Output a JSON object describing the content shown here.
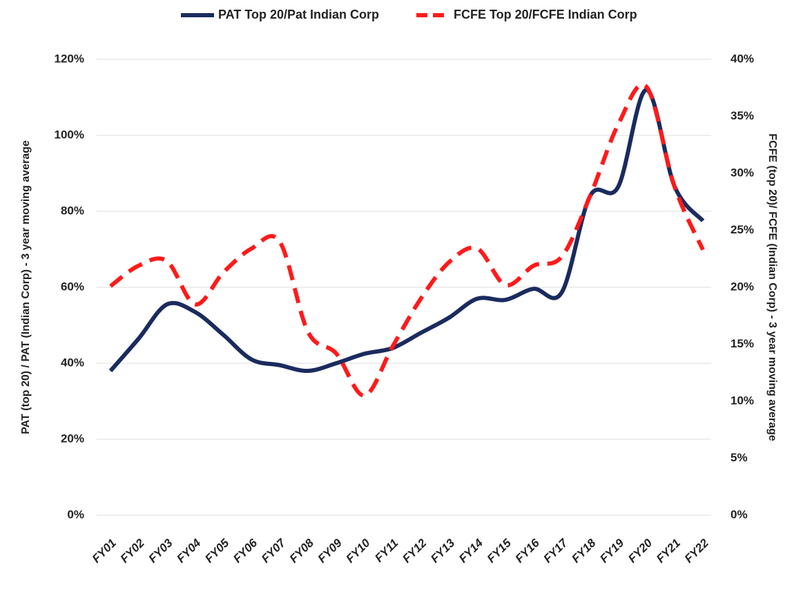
{
  "chart_data": {
    "type": "line",
    "y_label": "PAT (top 20) / PAT (Indian Corp) - 3 year moving average",
    "y2_label": "FCFE (top 20)/ FCFE (Indian Corp) - 3 year moving average",
    "categories": [
      "FY01",
      "FY02",
      "FY03",
      "FY04",
      "FY05",
      "FY06",
      "FY07",
      "FY08",
      "FY09",
      "FY10",
      "FY11",
      "FY12",
      "FY13",
      "FY14",
      "FY15",
      "FY16",
      "FY17",
      "FY18",
      "FY19",
      "FY20",
      "FY21",
      "FY22"
    ],
    "series": [
      {
        "name": "PAT Top 20/Pat Indian Corp",
        "color": "#1b2b5f",
        "dash": false,
        "axis": "y",
        "values": [
          38,
          46.5,
          55.5,
          53.5,
          47.5,
          41,
          39.5,
          38,
          40,
          42.5,
          44,
          48,
          52,
          57,
          56.7,
          59.6,
          58.7,
          84,
          86.5,
          112,
          86.5,
          77.5
        ]
      },
      {
        "name": "FCFE Top 20/FCFE Indian Corp",
        "color": "#ff1a1a",
        "dash": true,
        "axis": "y2",
        "values": [
          20.1,
          21.9,
          22.3,
          18.5,
          21.3,
          23.4,
          24,
          16.1,
          14.2,
          10.5,
          14.8,
          19,
          22.2,
          23.4,
          20.2,
          21.9,
          22.7,
          28,
          34.3,
          37.6,
          28.8,
          23.3
        ]
      }
    ],
    "ylim": [
      0,
      120
    ],
    "yticks": [
      {
        "value": 0,
        "label": "0%"
      },
      {
        "value": 20,
        "label": "20%"
      },
      {
        "value": 40,
        "label": "40%"
      },
      {
        "value": 60,
        "label": "60%"
      },
      {
        "value": 80,
        "label": "80%"
      },
      {
        "value": 100,
        "label": "100%"
      },
      {
        "value": 120,
        "label": "120%"
      }
    ],
    "y2lim": [
      0,
      40
    ],
    "y2ticks": [
      {
        "value": 0,
        "label": "0%"
      },
      {
        "value": 5,
        "label": "5%"
      },
      {
        "value": 10,
        "label": "10%"
      },
      {
        "value": 15,
        "label": "15%"
      },
      {
        "value": 20,
        "label": "20%"
      },
      {
        "value": 25,
        "label": "25%"
      },
      {
        "value": 30,
        "label": "30%"
      },
      {
        "value": 35,
        "label": "35%"
      },
      {
        "value": 40,
        "label": "40%"
      }
    ],
    "grid": true,
    "legend": "top"
  }
}
